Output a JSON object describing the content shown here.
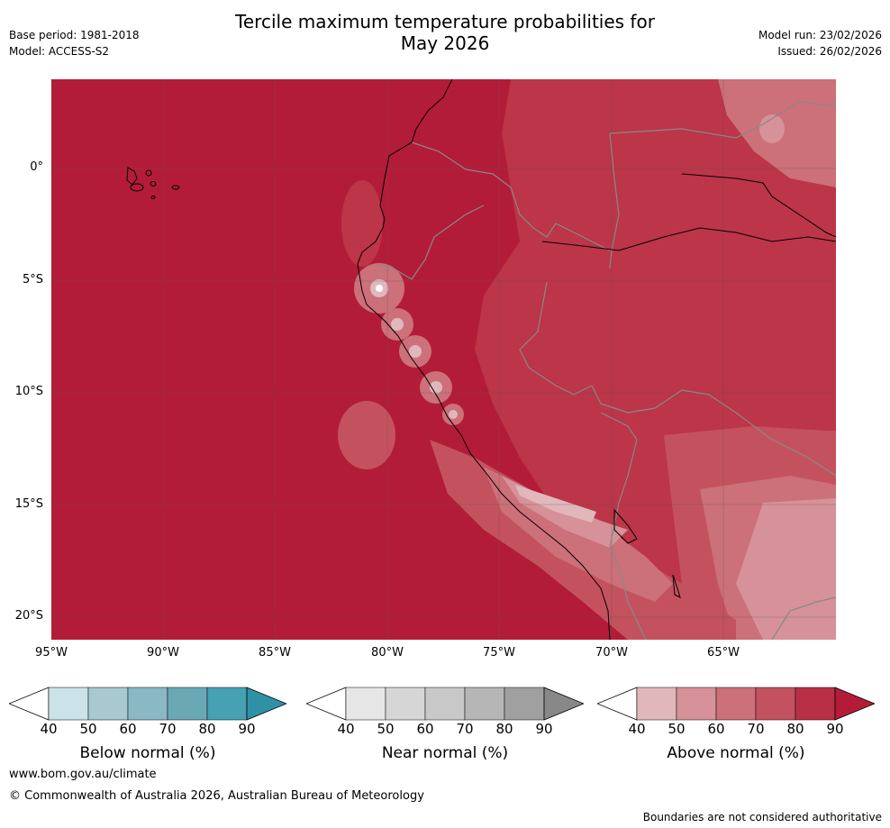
{
  "header": {
    "title_line1": "Tercile maximum temperature probabilities for",
    "title_line2": "May 2026",
    "base_period": "Base period: 1981-2018",
    "model": "Model: ACCESS-S2",
    "model_run": "Model run: 23/02/2026",
    "issued": "Issued: 26/02/2026"
  },
  "map": {
    "lat_ticks": [
      "0°",
      "5°S",
      "10°S",
      "15°S",
      "20°S"
    ],
    "lon_ticks": [
      "95°W",
      "90°W",
      "85°W",
      "80°W",
      "75°W",
      "70°W",
      "65°W"
    ],
    "colors": {
      "above90": "#b31c38",
      "above80": "#bc3548",
      "above70": "#c4525e",
      "above60": "#cc7079",
      "above50": "#d69298",
      "above40": "#e0b8bc",
      "land_border": "#888888",
      "coast": "#000000"
    }
  },
  "colorbars": [
    {
      "label": "Below normal (%)",
      "ticks": [
        "40",
        "50",
        "60",
        "70",
        "80",
        "90"
      ],
      "colors": [
        "#ffffff",
        "#c9e3e8",
        "#a8c9d0",
        "#8ab8c4",
        "#6aa8b6",
        "#46a1b3",
        "#2e91a6"
      ]
    },
    {
      "label": "Near normal (%)",
      "ticks": [
        "40",
        "50",
        "60",
        "70",
        "80",
        "90"
      ],
      "colors": [
        "#ffffff",
        "#e6e6e6",
        "#d6d6d6",
        "#c8c8c8",
        "#b6b6b6",
        "#a0a0a0",
        "#888888"
      ]
    },
    {
      "label": "Above normal (%)",
      "ticks": [
        "40",
        "50",
        "60",
        "70",
        "80",
        "90"
      ],
      "colors": [
        "#ffffff",
        "#e0b8bc",
        "#d69298",
        "#cc7079",
        "#c4525e",
        "#b93045",
        "#b31c38"
      ]
    }
  ],
  "footer": {
    "url": "www.bom.gov.au/climate",
    "copyright": "© Commonwealth of Australia 2026, Australian Bureau of Meteorology",
    "disclaimer": "Boundaries are not considered authoritative"
  }
}
